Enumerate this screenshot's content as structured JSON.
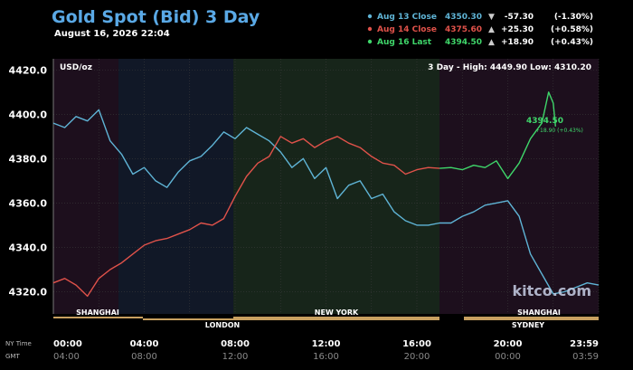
{
  "header": {
    "title": "Gold Spot (Bid) 3 Day",
    "datetime": "August 16, 2026 22:04"
  },
  "legend": [
    {
      "label": "Aug 13 Close",
      "value": "4350.30",
      "marker": "▼",
      "change": "-57.30",
      "pct": "(-1.30%)",
      "color": "#5fb4d6"
    },
    {
      "label": "Aug 14 Close",
      "value": "4375.60",
      "marker": "▲",
      "change": "+25.30",
      "pct": "(+0.58%)",
      "color": "#e0524a"
    },
    {
      "label": "Aug 16 Last",
      "value": "4394.50",
      "marker": "▲",
      "change": "+18.90",
      "pct": "(+0.43%)",
      "color": "#3fd66a"
    }
  ],
  "plot": {
    "unit": "USD/oz",
    "stats": "3 Day - High: 4449.90  Low: 4310.20",
    "watermark": "kitco.com",
    "last_value": "4394.50",
    "last_change": "+18.90 (+0.43%)"
  },
  "sessions": {
    "top": [
      "SHANGHAI",
      "NEW YORK",
      "SHANGHAI"
    ],
    "bottom": [
      "LONDON",
      "SYDNEY"
    ]
  },
  "time_axis": {
    "ny_label": "NY Time",
    "gmt_label": "GMT",
    "ny": [
      "00:00",
      "04:00",
      "08:00",
      "12:00",
      "16:00",
      "20:00",
      "23:59"
    ],
    "gmt": [
      "04:00",
      "08:00",
      "12:00",
      "16:00",
      "20:00",
      "00:00",
      "03:59"
    ]
  },
  "colors": {
    "background": "#000000",
    "title": "#5aa9e6",
    "grid": "#3a3a3a",
    "aug13": "#5fb4d6",
    "aug14": "#e0524a",
    "aug16": "#3fd66a",
    "session_bar": "#c8a060"
  },
  "chart_data": {
    "type": "line",
    "x_unit": "hours (NY time)",
    "xlim": [
      0,
      24
    ],
    "ylim": [
      4310,
      4425
    ],
    "y_ticks": [
      4320.0,
      4340.0,
      4360.0,
      4380.0,
      4400.0,
      4420.0
    ],
    "grid": true,
    "series": [
      {
        "name": "Aug 13 Close",
        "color": "#5fb4d6",
        "points": [
          [
            0,
            4396
          ],
          [
            0.5,
            4394
          ],
          [
            1,
            4399
          ],
          [
            1.5,
            4397
          ],
          [
            2,
            4402
          ],
          [
            2.5,
            4388
          ],
          [
            3,
            4382
          ],
          [
            3.5,
            4373
          ],
          [
            4,
            4376
          ],
          [
            4.5,
            4370
          ],
          [
            5,
            4367
          ],
          [
            5.5,
            4374
          ],
          [
            6,
            4379
          ],
          [
            6.5,
            4381
          ],
          [
            7,
            4386
          ],
          [
            7.5,
            4392
          ],
          [
            8,
            4389
          ],
          [
            8.5,
            4394
          ],
          [
            9,
            4391
          ],
          [
            9.5,
            4388
          ],
          [
            10,
            4383
          ],
          [
            10.5,
            4376
          ],
          [
            11,
            4380
          ],
          [
            11.5,
            4371
          ],
          [
            12,
            4376
          ],
          [
            12.5,
            4362
          ],
          [
            13,
            4368
          ],
          [
            13.5,
            4370
          ],
          [
            14,
            4362
          ],
          [
            14.5,
            4364
          ],
          [
            15,
            4356
          ],
          [
            15.5,
            4352
          ],
          [
            16,
            4350
          ],
          [
            16.5,
            4350
          ],
          [
            17,
            4351
          ],
          [
            17.5,
            4351
          ],
          [
            18,
            4354
          ],
          [
            18.5,
            4356
          ],
          [
            19,
            4359
          ],
          [
            19.5,
            4360
          ],
          [
            20,
            4361
          ],
          [
            20.5,
            4354
          ],
          [
            21,
            4337
          ],
          [
            21.5,
            4328
          ],
          [
            22,
            4319
          ],
          [
            22.5,
            4320
          ],
          [
            23,
            4322
          ],
          [
            23.5,
            4324
          ],
          [
            24,
            4323
          ]
        ]
      },
      {
        "name": "Aug 14 Close",
        "color": "#e0524a",
        "points": [
          [
            0,
            4324
          ],
          [
            0.5,
            4326
          ],
          [
            1,
            4323
          ],
          [
            1.5,
            4318
          ],
          [
            2,
            4326
          ],
          [
            2.5,
            4330
          ],
          [
            3,
            4333
          ],
          [
            3.5,
            4337
          ],
          [
            4,
            4341
          ],
          [
            4.5,
            4343
          ],
          [
            5,
            4344
          ],
          [
            5.5,
            4346
          ],
          [
            6,
            4348
          ],
          [
            6.5,
            4351
          ],
          [
            7,
            4350
          ],
          [
            7.5,
            4353
          ],
          [
            8,
            4363
          ],
          [
            8.5,
            4372
          ],
          [
            9,
            4378
          ],
          [
            9.5,
            4381
          ],
          [
            10,
            4390
          ],
          [
            10.5,
            4387
          ],
          [
            11,
            4389
          ],
          [
            11.5,
            4385
          ],
          [
            12,
            4388
          ],
          [
            12.5,
            4390
          ],
          [
            13,
            4387
          ],
          [
            13.5,
            4385
          ],
          [
            14,
            4381
          ],
          [
            14.5,
            4378
          ],
          [
            15,
            4377
          ],
          [
            15.5,
            4373
          ],
          [
            16,
            4375
          ],
          [
            16.5,
            4376
          ],
          [
            17,
            4375.6
          ]
        ]
      },
      {
        "name": "Aug 16 Last",
        "color": "#3fd66a",
        "points": [
          [
            17,
            4375.6
          ],
          [
            17.5,
            4376
          ],
          [
            18,
            4375
          ],
          [
            18.5,
            4377
          ],
          [
            19,
            4376
          ],
          [
            19.5,
            4379
          ],
          [
            20,
            4371
          ],
          [
            20.5,
            4378
          ],
          [
            21,
            4389
          ],
          [
            21.5,
            4396
          ],
          [
            21.8,
            4410
          ],
          [
            22,
            4405
          ],
          [
            22.1,
            4394.5
          ]
        ]
      }
    ]
  }
}
